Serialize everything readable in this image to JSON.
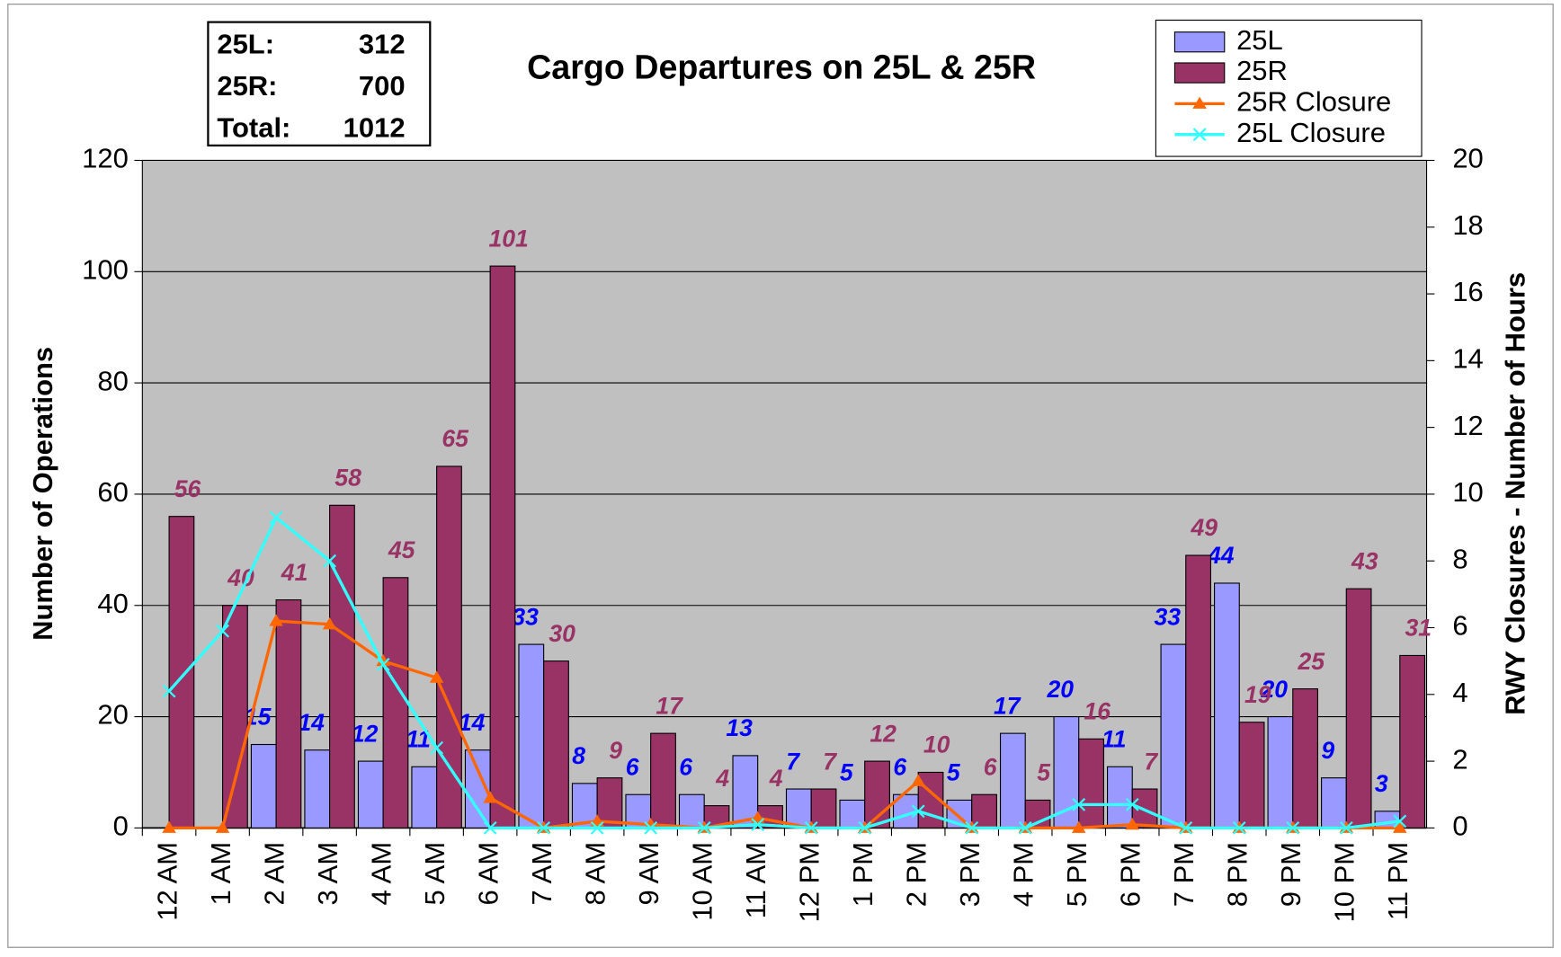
{
  "chart_data": {
    "type": "bar",
    "title": "Cargo Departures on 25L & 25R",
    "summary": [
      {
        "label": "25L:",
        "value": 312
      },
      {
        "label": "25R:",
        "value": 700
      },
      {
        "label": "Total:",
        "value": 1012
      }
    ],
    "y_label": "Number of Operations",
    "y2_label": "RWY Closures - Number of Hours",
    "categories": [
      "12 AM",
      "1 AM",
      "2 AM",
      "3 AM",
      "4 AM",
      "5 AM",
      "6 AM",
      "7 AM",
      "8 AM",
      "9 AM",
      "10 AM",
      "11 AM",
      "12 PM",
      "1 PM",
      "2 PM",
      "3 PM",
      "4 PM",
      "5 PM",
      "6 PM",
      "7 PM",
      "8 PM",
      "9 PM",
      "10 PM",
      "11 PM"
    ],
    "series": [
      {
        "name": "25L",
        "type": "bar",
        "color": "#9999ff",
        "label_color": "#0000ff",
        "values": [
          null,
          null,
          15,
          14,
          12,
          11,
          14,
          33,
          8,
          6,
          6,
          13,
          7,
          5,
          6,
          5,
          17,
          20,
          11,
          33,
          44,
          20,
          9,
          3
        ]
      },
      {
        "name": "25R",
        "type": "bar",
        "color": "#993366",
        "label_color": "#993366",
        "values": [
          56,
          40,
          41,
          58,
          45,
          65,
          101,
          30,
          9,
          17,
          4,
          4,
          7,
          12,
          10,
          6,
          5,
          16,
          7,
          49,
          19,
          25,
          43,
          31
        ]
      },
      {
        "name": "25R Closure",
        "type": "line",
        "axis": "y2",
        "color": "#ff6600",
        "marker": "triangle",
        "values": [
          0,
          0,
          6.2,
          6.1,
          5,
          4.5,
          0.9,
          0,
          0.2,
          0.1,
          0,
          0.3,
          0,
          0,
          1.4,
          0,
          0,
          0,
          0.1,
          0,
          0,
          0,
          0,
          0
        ]
      },
      {
        "name": "25L Closure",
        "type": "line",
        "axis": "y2",
        "color": "#33ffff",
        "marker": "x",
        "values": [
          4.1,
          5.9,
          9.3,
          8,
          4.9,
          2.4,
          0,
          0,
          0,
          0,
          0,
          0.1,
          0,
          0,
          0.5,
          0,
          0,
          0.7,
          0.7,
          0,
          0,
          0,
          0,
          0.2
        ]
      }
    ],
    "ylim": [
      0,
      120
    ],
    "yticks": [
      0,
      20,
      40,
      60,
      80,
      100,
      120
    ],
    "y2lim": [
      0,
      20
    ],
    "y2ticks": [
      0,
      2,
      4,
      6,
      8,
      10,
      12,
      14,
      16,
      18,
      20
    ],
    "grid": true,
    "legend": "top-right"
  }
}
